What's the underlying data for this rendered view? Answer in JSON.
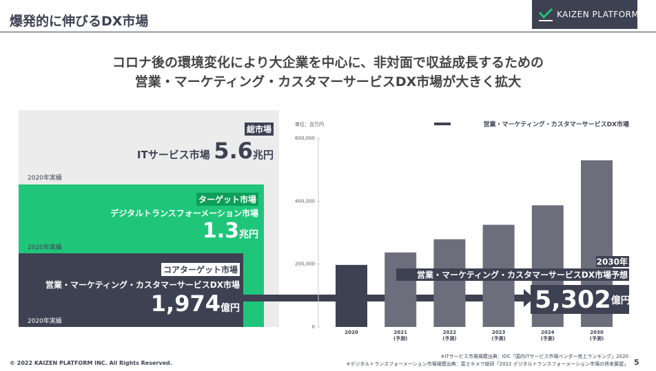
{
  "header": {
    "title": "爆発的に伸びるDX市場",
    "logo": "KAIZEN PLATFORM"
  },
  "lead": [
    "コロナ後の環境変化により大企業を中心に、非対面で収益成長するための",
    "営業・マーケティング・カスタマーサービスDX市場が大きく拡大"
  ],
  "markets": [
    {
      "tag": "総市場",
      "name": "ITサービス市場",
      "value": "5.6",
      "unit": "兆円",
      "note": "2020年実績"
    },
    {
      "tag": "ターゲット市場",
      "name": "デジタルトランスフォーメーション市場",
      "value": "1.3",
      "unit": "兆円",
      "note": "2020年実績"
    },
    {
      "tag": "コアターゲット市場",
      "name": "営業・マーケティング・カスタマーサービスDX市場",
      "value": "1,974",
      "unit": "億円",
      "note": "2020年実績"
    }
  ],
  "chart_data": {
    "type": "bar",
    "unit_label": "単位：百万円",
    "categories": [
      "2020",
      "2021",
      "2022",
      "2023",
      "2024",
      "2030"
    ],
    "category_sublabels": [
      null,
      "(予測)",
      "(予測)",
      "(予測)",
      "(予測)",
      "(予測)"
    ],
    "series": [
      {
        "name": "営業・マーケティング・カスタマーサービスDX市場",
        "color": "#3d4152",
        "values": [
          197400,
          237000,
          279000,
          325000,
          387000,
          530200
        ]
      }
    ],
    "colors": [
      "#3d4152",
      "#6c6f7b",
      "#6c6f7b",
      "#6c6f7b",
      "#6c6f7b",
      "#6c6f7b"
    ],
    "ylim": [
      0,
      600000
    ],
    "yticks": [
      {
        "value": 0,
        "label": "0"
      },
      {
        "value": 200000,
        "label": "200,000"
      },
      {
        "value": 400000,
        "label": "400,000"
      },
      {
        "value": 600000,
        "label": "600,000"
      }
    ],
    "grid": false,
    "legend": "top-right",
    "callout": {
      "year": "2030年",
      "title": "営業・マーケティング・カスタマーサービスDX市場予想",
      "value": "5,302",
      "unit": "億円"
    }
  },
  "sources": [
    "※ITサービス市場規模出典：IDC「国内ITサービス市場ベンダー売上ランキング」2020",
    "※デジタルトランスフォーメーション市場規模出典：富士キメラ総研「2022 デジタルトランスフォーメーション市場の将来展望」"
  ],
  "footer": {
    "copyright": "© 2022 KAIZEN PLATFORM INC. All Rights Reserved.",
    "page": "5"
  }
}
